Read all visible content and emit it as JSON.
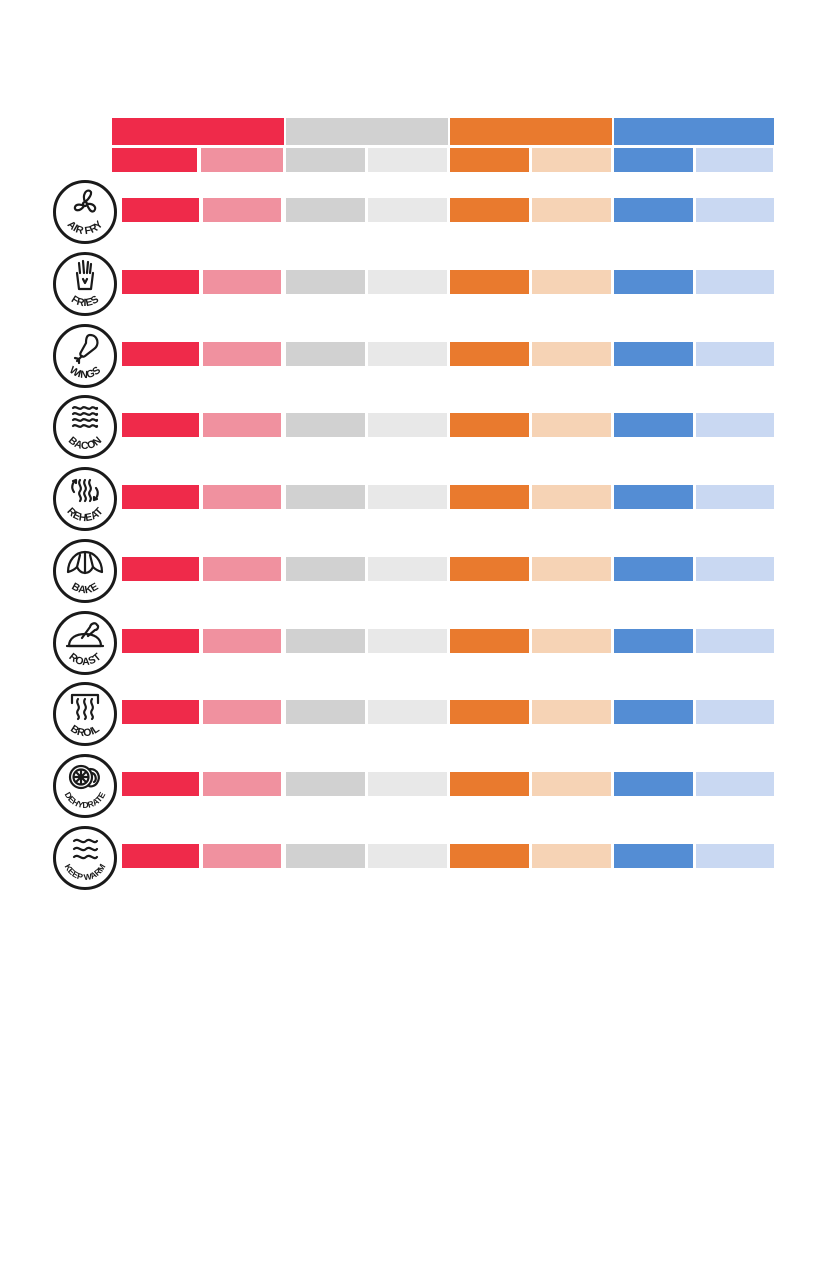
{
  "colors": {
    "red": "#ef2a4a",
    "red_light": "#f0919f",
    "gray": "#d1d1d1",
    "gray_light": "#e8e8e8",
    "orange": "#e97a2e",
    "orange_light": "#f6d3b5",
    "blue": "#548dd4",
    "blue_light": "#c9d8f2",
    "icon_stroke": "#1a1a1a"
  },
  "header": {
    "groups": [
      {
        "color_key": "red"
      },
      {
        "color_key": "gray"
      },
      {
        "color_key": "orange"
      },
      {
        "color_key": "blue"
      }
    ]
  },
  "functions": [
    {
      "label": "AIR FRY",
      "icon": "fan-icon"
    },
    {
      "label": "FRIES",
      "icon": "fries-icon"
    },
    {
      "label": "WINGS",
      "icon": "drumstick-icon"
    },
    {
      "label": "BACON",
      "icon": "bacon-icon"
    },
    {
      "label": "REHEAT",
      "icon": "reheat-waves-icon"
    },
    {
      "label": "BAKE",
      "icon": "croissant-icon"
    },
    {
      "label": "ROAST",
      "icon": "roast-chicken-icon"
    },
    {
      "label": "BROIL",
      "icon": "broil-heat-icon"
    },
    {
      "label": "DEHYDRATE",
      "icon": "citrus-slice-icon"
    },
    {
      "label": "KEEP WARM",
      "icon": "warm-waves-icon"
    }
  ]
}
